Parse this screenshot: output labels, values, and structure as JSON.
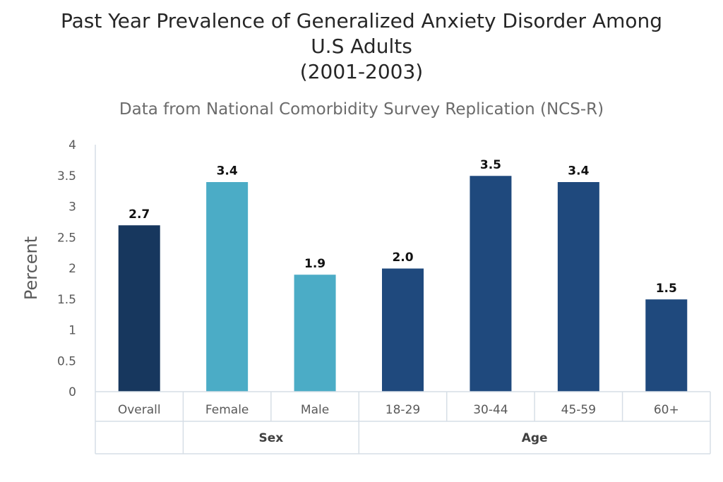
{
  "chart_data": {
    "type": "bar",
    "title_lines": [
      "Past Year Prevalence of Generalized Anxiety Disorder Among",
      "U.S Adults",
      "(2001-2003)"
    ],
    "subtitle": "Data from National Comorbidity Survey Replication (NCS-R)",
    "ylabel": "Percent",
    "xlabel": "",
    "ylim": [
      0,
      4
    ],
    "yticks": [
      "0",
      "0.5",
      "1",
      "1.5",
      "2",
      "2.5",
      "3",
      "3.5",
      "4"
    ],
    "yticks_values": [
      0,
      0.5,
      1,
      1.5,
      2,
      2.5,
      3,
      3.5,
      4
    ],
    "categories": [
      "Overall",
      "Female",
      "Male",
      "18-29",
      "30-44",
      "45-59",
      "60+"
    ],
    "values": [
      2.7,
      3.4,
      1.9,
      2.0,
      3.5,
      3.4,
      1.5
    ],
    "data_labels": [
      "2.7",
      "3.4",
      "1.9",
      "2.0",
      "3.5",
      "3.4",
      "1.5"
    ],
    "groups": [
      {
        "label": "",
        "categories": [
          "Overall"
        ]
      },
      {
        "label": "Sex",
        "categories": [
          "Female",
          "Male"
        ]
      },
      {
        "label": "Age",
        "categories": [
          "18-29",
          "30-44",
          "45-59",
          "60+"
        ]
      }
    ],
    "colors": [
      "#17375e",
      "#4bacc6",
      "#4bacc6",
      "#1f497d",
      "#1f497d",
      "#1f497d",
      "#1f497d"
    ],
    "grid": false,
    "legend": "none"
  }
}
